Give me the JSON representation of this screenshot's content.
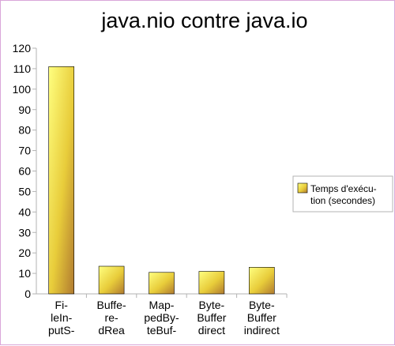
{
  "chart_data": {
    "type": "bar",
    "title": "java.nio contre java.io",
    "categories": [
      [
        "Fi-",
        "leIn-",
        "putS-"
      ],
      [
        "Buffe-",
        "re-",
        "dRea"
      ],
      [
        "Map-",
        "pedBy-",
        "teBuf-"
      ],
      [
        "Byte-",
        "Buffer",
        "direct"
      ],
      [
        "Byte-",
        "Buffer",
        "indirect"
      ]
    ],
    "series": [
      {
        "name": [
          "Temps d'exécu-",
          "tion (secondes)"
        ],
        "values": [
          111,
          13.5,
          10.5,
          11,
          13
        ]
      }
    ],
    "ylim": [
      0,
      120
    ],
    "yticks": [
      0,
      10,
      20,
      30,
      40,
      50,
      60,
      70,
      80,
      90,
      100,
      110,
      120
    ],
    "grid": false,
    "legend": "right",
    "colors": {
      "bar_light": "#ffff80",
      "bar_mid": "#e8cc3a",
      "bar_dark": "#b07a30",
      "bar_stroke": "#000000",
      "axis": "#b3b3b3",
      "frame": "#d9a6d9"
    }
  }
}
